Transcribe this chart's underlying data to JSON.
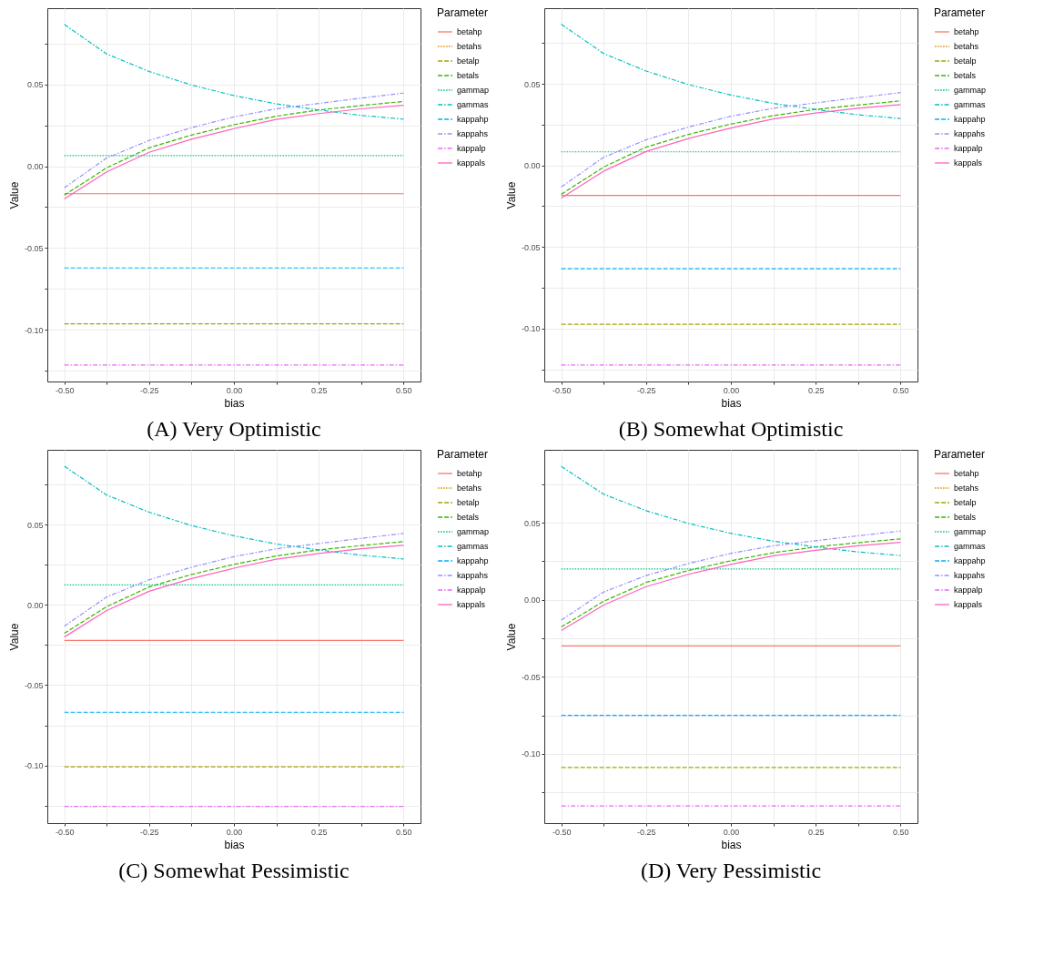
{
  "chart_data": [
    {
      "type": "line",
      "title": "(A) Very Optimistic",
      "xlabel": "bias",
      "ylabel": "Value",
      "legend_title": "Parameter",
      "legend": "right",
      "grid": true,
      "x": [
        -0.5,
        -0.375,
        -0.25,
        -0.125,
        0,
        0.125,
        0.25,
        0.375,
        0.5
      ],
      "xlim": [
        -0.55,
        0.55
      ],
      "xticks": [
        {
          "value": -0.5,
          "label": "-0.50"
        },
        {
          "value": -0.375,
          "label": null
        },
        {
          "value": -0.25,
          "label": "-0.25"
        },
        {
          "value": -0.125,
          "label": null
        },
        {
          "value": 0,
          "label": "0.00"
        },
        {
          "value": 0.125,
          "label": null
        },
        {
          "value": 0.25,
          "label": "0.25"
        },
        {
          "value": 0.375,
          "label": null
        },
        {
          "value": 0.5,
          "label": "0.50"
        }
      ],
      "ylim": [
        -0.1314,
        0.0964
      ],
      "yticks": [
        {
          "value": -0.125,
          "label": null
        },
        {
          "value": -0.1,
          "label": "-0.10"
        },
        {
          "value": -0.075,
          "label": null
        },
        {
          "value": -0.05,
          "label": "-0.05"
        },
        {
          "value": -0.025,
          "label": null
        },
        {
          "value": 0,
          "label": "0.00"
        },
        {
          "value": 0.025,
          "label": null
        },
        {
          "value": 0.05,
          "label": "0.05"
        },
        {
          "value": 0.075,
          "label": null
        }
      ],
      "series": [
        {
          "name": "betahp",
          "color": "#f8766d",
          "line_style": "solid",
          "values": [
            -0.0168,
            -0.0168,
            -0.0168,
            -0.0168,
            -0.0168,
            -0.0168,
            -0.0168,
            -0.0168,
            -0.0168
          ]
        },
        {
          "name": "betahs",
          "color": "#d89000",
          "line_style": "dotted",
          "values": [
            null,
            null,
            null,
            null,
            null,
            null,
            null,
            null,
            null
          ]
        },
        {
          "name": "betalp",
          "color": "#a3a500",
          "line_style": "dashed",
          "values": [
            -0.0962,
            -0.0962,
            -0.0962,
            -0.0962,
            -0.0962,
            -0.0962,
            -0.0962,
            -0.0962,
            -0.0962
          ]
        },
        {
          "name": "betals",
          "color": "#39b600",
          "line_style": "dashed",
          "values": [
            -0.0177,
            -0.001,
            0.0112,
            0.019,
            0.0253,
            0.0305,
            0.0343,
            0.037,
            0.0395
          ]
        },
        {
          "name": "gammap",
          "color": "#00bf7d",
          "line_style": "dotted",
          "values": [
            0.0065,
            0.0065,
            0.0065,
            0.0065,
            0.0065,
            0.0065,
            0.0065,
            0.0065,
            0.0065
          ]
        },
        {
          "name": "gammas",
          "color": "#00bfc4",
          "line_style": "dashdot",
          "values": [
            0.0865,
            0.0685,
            0.0578,
            0.0495,
            0.0431,
            0.038,
            0.0343,
            0.031,
            0.0287
          ]
        },
        {
          "name": "kappahp",
          "color": "#00b0f6",
          "line_style": "dashed",
          "values": [
            -0.0621,
            -0.0621,
            -0.0621,
            -0.0621,
            -0.0621,
            -0.0621,
            -0.0621,
            -0.0621,
            -0.0621
          ]
        },
        {
          "name": "kappahs",
          "color": "#9590ff",
          "line_style": "dashdot",
          "values": [
            -0.0132,
            0.005,
            0.0157,
            0.0235,
            0.0301,
            0.035,
            0.0383,
            0.0415,
            0.0446
          ]
        },
        {
          "name": "kappalp",
          "color": "#e76bf3",
          "line_style": "dashdot",
          "values": [
            -0.1213,
            -0.1213,
            -0.1213,
            -0.1213,
            -0.1213,
            -0.1213,
            -0.1213,
            -0.1213,
            -0.1213
          ]
        },
        {
          "name": "kappals",
          "color": "#ff62bc",
          "line_style": "solid",
          "values": [
            -0.02,
            -0.0035,
            0.0085,
            0.0165,
            0.0229,
            0.0285,
            0.0321,
            0.035,
            0.0372
          ]
        }
      ]
    },
    {
      "type": "line",
      "title": "(B) Somewhat Optimistic",
      "xlabel": "bias",
      "ylabel": "Value",
      "legend_title": "Parameter",
      "legend": "right",
      "grid": true,
      "x": [
        -0.5,
        -0.375,
        -0.25,
        -0.125,
        0,
        0.125,
        0.25,
        0.375,
        0.5
      ],
      "xlim": [
        -0.55,
        0.55
      ],
      "xticks": [
        {
          "value": -0.5,
          "label": "-0.50"
        },
        {
          "value": -0.375,
          "label": null
        },
        {
          "value": -0.25,
          "label": "-0.25"
        },
        {
          "value": -0.125,
          "label": null
        },
        {
          "value": 0,
          "label": "0.00"
        },
        {
          "value": 0.125,
          "label": null
        },
        {
          "value": 0.25,
          "label": "0.25"
        },
        {
          "value": 0.375,
          "label": null
        },
        {
          "value": 0.5,
          "label": "0.50"
        }
      ],
      "ylim": [
        -0.1324,
        0.0963
      ],
      "yticks": [
        {
          "value": -0.125,
          "label": null
        },
        {
          "value": -0.1,
          "label": "-0.10"
        },
        {
          "value": -0.075,
          "label": null
        },
        {
          "value": -0.05,
          "label": "-0.05"
        },
        {
          "value": -0.025,
          "label": null
        },
        {
          "value": 0,
          "label": "0.00"
        },
        {
          "value": 0.025,
          "label": null
        },
        {
          "value": 0.05,
          "label": "0.05"
        },
        {
          "value": 0.075,
          "label": null
        }
      ],
      "series": [
        {
          "name": "betahp",
          "color": "#f8766d",
          "line_style": "solid",
          "values": [
            -0.0184,
            -0.0184,
            -0.0184,
            -0.0184,
            -0.0184,
            -0.0184,
            -0.0184,
            -0.0184,
            -0.0184
          ]
        },
        {
          "name": "betahs",
          "color": "#d89000",
          "line_style": "dotted",
          "values": [
            null,
            null,
            null,
            null,
            null,
            null,
            null,
            null,
            null
          ]
        },
        {
          "name": "betalp",
          "color": "#a3a500",
          "line_style": "dashed",
          "values": [
            -0.0973,
            -0.0973,
            -0.0973,
            -0.0973,
            -0.0973,
            -0.0973,
            -0.0973,
            -0.0973,
            -0.0973
          ]
        },
        {
          "name": "betals",
          "color": "#39b600",
          "line_style": "dashed",
          "values": [
            -0.0177,
            -0.001,
            0.0112,
            0.019,
            0.0253,
            0.0305,
            0.0343,
            0.037,
            0.0395
          ]
        },
        {
          "name": "gammap",
          "color": "#00bf7d",
          "line_style": "dotted",
          "values": [
            0.0083,
            0.0083,
            0.0083,
            0.0083,
            0.0083,
            0.0083,
            0.0083,
            0.0083,
            0.0083
          ]
        },
        {
          "name": "gammas",
          "color": "#00bfc4",
          "line_style": "dashdot",
          "values": [
            0.0865,
            0.0685,
            0.0578,
            0.0495,
            0.0431,
            0.038,
            0.0343,
            0.031,
            0.0287
          ]
        },
        {
          "name": "kappahp",
          "color": "#00b0f6",
          "line_style": "dashed",
          "values": [
            -0.0633,
            -0.0633,
            -0.0633,
            -0.0633,
            -0.0633,
            -0.0633,
            -0.0633,
            -0.0633,
            -0.0633
          ]
        },
        {
          "name": "kappahs",
          "color": "#9590ff",
          "line_style": "dashdot",
          "values": [
            -0.0132,
            0.005,
            0.0157,
            0.0235,
            0.0301,
            0.035,
            0.0383,
            0.0415,
            0.0446
          ]
        },
        {
          "name": "kappalp",
          "color": "#e76bf3",
          "line_style": "dashdot",
          "values": [
            -0.1223,
            -0.1223,
            -0.1223,
            -0.1223,
            -0.1223,
            -0.1223,
            -0.1223,
            -0.1223,
            -0.1223
          ]
        },
        {
          "name": "kappals",
          "color": "#ff62bc",
          "line_style": "solid",
          "values": [
            -0.02,
            -0.0035,
            0.0085,
            0.0165,
            0.0229,
            0.0285,
            0.0321,
            0.035,
            0.0372
          ]
        }
      ]
    },
    {
      "type": "line",
      "title": "(C) Somewhat Pessimistic",
      "xlabel": "bias",
      "ylabel": "Value",
      "legend_title": "Parameter",
      "legend": "right",
      "grid": true,
      "x": [
        -0.5,
        -0.375,
        -0.25,
        -0.125,
        0,
        0.125,
        0.25,
        0.375,
        0.5
      ],
      "xlim": [
        -0.55,
        0.55
      ],
      "xticks": [
        {
          "value": -0.5,
          "label": "-0.50"
        },
        {
          "value": -0.375,
          "label": null
        },
        {
          "value": -0.25,
          "label": "-0.25"
        },
        {
          "value": -0.125,
          "label": null
        },
        {
          "value": 0,
          "label": "0.00"
        },
        {
          "value": 0.125,
          "label": null
        },
        {
          "value": 0.25,
          "label": "0.25"
        },
        {
          "value": 0.375,
          "label": null
        },
        {
          "value": 0.5,
          "label": "0.50"
        }
      ],
      "ylim": [
        -0.136,
        0.0967
      ],
      "yticks": [
        {
          "value": -0.125,
          "label": null
        },
        {
          "value": -0.1,
          "label": "-0.10"
        },
        {
          "value": -0.075,
          "label": null
        },
        {
          "value": -0.05,
          "label": "-0.05"
        },
        {
          "value": -0.025,
          "label": null
        },
        {
          "value": 0,
          "label": "0.00"
        },
        {
          "value": 0.025,
          "label": null
        },
        {
          "value": 0.05,
          "label": "0.05"
        },
        {
          "value": 0.075,
          "label": null
        }
      ],
      "series": [
        {
          "name": "betahp",
          "color": "#f8766d",
          "line_style": "solid",
          "values": [
            -0.0221,
            -0.0221,
            -0.0221,
            -0.0221,
            -0.0221,
            -0.0221,
            -0.0221,
            -0.0221,
            -0.0221
          ]
        },
        {
          "name": "betahs",
          "color": "#d89000",
          "line_style": "dotted",
          "values": [
            null,
            null,
            null,
            null,
            null,
            null,
            null,
            null,
            null
          ]
        },
        {
          "name": "betalp",
          "color": "#a3a500",
          "line_style": "dashed",
          "values": [
            -0.1009,
            -0.1009,
            -0.1009,
            -0.1009,
            -0.1009,
            -0.1009,
            -0.1009,
            -0.1009,
            -0.1009
          ]
        },
        {
          "name": "betals",
          "color": "#39b600",
          "line_style": "dashed",
          "values": [
            -0.0177,
            -0.001,
            0.0112,
            0.019,
            0.0253,
            0.0305,
            0.0343,
            0.037,
            0.0395
          ]
        },
        {
          "name": "gammap",
          "color": "#00bf7d",
          "line_style": "dotted",
          "values": [
            0.0125,
            0.0125,
            0.0125,
            0.0125,
            0.0125,
            0.0125,
            0.0125,
            0.0125,
            0.0125
          ]
        },
        {
          "name": "gammas",
          "color": "#00bfc4",
          "line_style": "dashdot",
          "values": [
            0.0865,
            0.0685,
            0.0578,
            0.0495,
            0.0431,
            0.038,
            0.0343,
            0.031,
            0.0287
          ]
        },
        {
          "name": "kappahp",
          "color": "#00b0f6",
          "line_style": "dashed",
          "values": [
            -0.0669,
            -0.0669,
            -0.0669,
            -0.0669,
            -0.0669,
            -0.0669,
            -0.0669,
            -0.0669,
            -0.0669
          ]
        },
        {
          "name": "kappahs",
          "color": "#9590ff",
          "line_style": "dashdot",
          "values": [
            -0.0132,
            0.005,
            0.0157,
            0.0235,
            0.0301,
            0.035,
            0.0383,
            0.0415,
            0.0446
          ]
        },
        {
          "name": "kappalp",
          "color": "#e76bf3",
          "line_style": "dashdot",
          "values": [
            -0.1256,
            -0.1256,
            -0.1256,
            -0.1256,
            -0.1256,
            -0.1256,
            -0.1256,
            -0.1256,
            -0.1256
          ]
        },
        {
          "name": "kappals",
          "color": "#ff62bc",
          "line_style": "solid",
          "values": [
            -0.02,
            -0.0035,
            0.0085,
            0.0165,
            0.0229,
            0.0285,
            0.0321,
            0.035,
            0.0372
          ]
        }
      ]
    },
    {
      "type": "line",
      "title": "(D) Very Pessimistic",
      "xlabel": "bias",
      "ylabel": "Value",
      "legend_title": "Parameter",
      "legend": "right",
      "grid": true,
      "x": [
        -0.5,
        -0.375,
        -0.25,
        -0.125,
        0,
        0.125,
        0.25,
        0.375,
        0.5
      ],
      "xlim": [
        -0.55,
        0.55
      ],
      "xticks": [
        {
          "value": -0.5,
          "label": "-0.50"
        },
        {
          "value": -0.375,
          "label": null
        },
        {
          "value": -0.25,
          "label": "-0.25"
        },
        {
          "value": -0.125,
          "label": null
        },
        {
          "value": 0,
          "label": "0.00"
        },
        {
          "value": 0.125,
          "label": null
        },
        {
          "value": 0.25,
          "label": "0.25"
        },
        {
          "value": 0.375,
          "label": null
        },
        {
          "value": 0.5,
          "label": "0.50"
        }
      ],
      "ylim": [
        -0.145,
        0.0973
      ],
      "yticks": [
        {
          "value": -0.125,
          "label": null
        },
        {
          "value": -0.1,
          "label": "-0.10"
        },
        {
          "value": -0.075,
          "label": null
        },
        {
          "value": -0.05,
          "label": "-0.05"
        },
        {
          "value": -0.025,
          "label": null
        },
        {
          "value": 0,
          "label": "0.00"
        },
        {
          "value": 0.025,
          "label": null
        },
        {
          "value": 0.05,
          "label": "0.05"
        },
        {
          "value": 0.075,
          "label": null
        }
      ],
      "series": [
        {
          "name": "betahp",
          "color": "#f8766d",
          "line_style": "solid",
          "values": [
            -0.03,
            -0.03,
            -0.03,
            -0.03,
            -0.03,
            -0.03,
            -0.03,
            -0.03,
            -0.03
          ]
        },
        {
          "name": "betahs",
          "color": "#d89000",
          "line_style": "dotted",
          "values": [
            null,
            null,
            null,
            null,
            null,
            null,
            null,
            null,
            null
          ]
        },
        {
          "name": "betalp",
          "color": "#a3a500",
          "line_style": "dashed",
          "values": [
            -0.1089,
            -0.1089,
            -0.1089,
            -0.1089,
            -0.1089,
            -0.1089,
            -0.1089,
            -0.1089,
            -0.1089
          ]
        },
        {
          "name": "betals",
          "color": "#39b600",
          "line_style": "dashed",
          "values": [
            -0.0177,
            -0.001,
            0.0112,
            0.019,
            0.0253,
            0.0305,
            0.0343,
            0.037,
            0.0395
          ]
        },
        {
          "name": "gammap",
          "color": "#00bf7d",
          "line_style": "dotted",
          "values": [
            0.02,
            0.02,
            0.02,
            0.02,
            0.02,
            0.02,
            0.02,
            0.02,
            0.02
          ]
        },
        {
          "name": "gammas",
          "color": "#00bfc4",
          "line_style": "dashdot",
          "values": [
            0.0865,
            0.0685,
            0.0578,
            0.0495,
            0.0431,
            0.038,
            0.0343,
            0.031,
            0.0287
          ]
        },
        {
          "name": "kappahp",
          "color": "#00b0f6",
          "line_style": "dashed",
          "values": [
            -0.075,
            -0.075,
            -0.075,
            -0.075,
            -0.075,
            -0.075,
            -0.075,
            -0.075,
            -0.075
          ]
        },
        {
          "name": "kappahs",
          "color": "#9590ff",
          "line_style": "dashdot",
          "values": [
            -0.0132,
            0.005,
            0.0157,
            0.0235,
            0.0301,
            0.035,
            0.0383,
            0.0415,
            0.0446
          ]
        },
        {
          "name": "kappalp",
          "color": "#e76bf3",
          "line_style": "dashdot",
          "values": [
            -0.1339,
            -0.1339,
            -0.1339,
            -0.1339,
            -0.1339,
            -0.1339,
            -0.1339,
            -0.1339,
            -0.1339
          ]
        },
        {
          "name": "kappals",
          "color": "#ff62bc",
          "line_style": "solid",
          "values": [
            -0.02,
            -0.0035,
            0.0085,
            0.0165,
            0.0229,
            0.0285,
            0.0321,
            0.035,
            0.0372
          ]
        }
      ]
    }
  ]
}
